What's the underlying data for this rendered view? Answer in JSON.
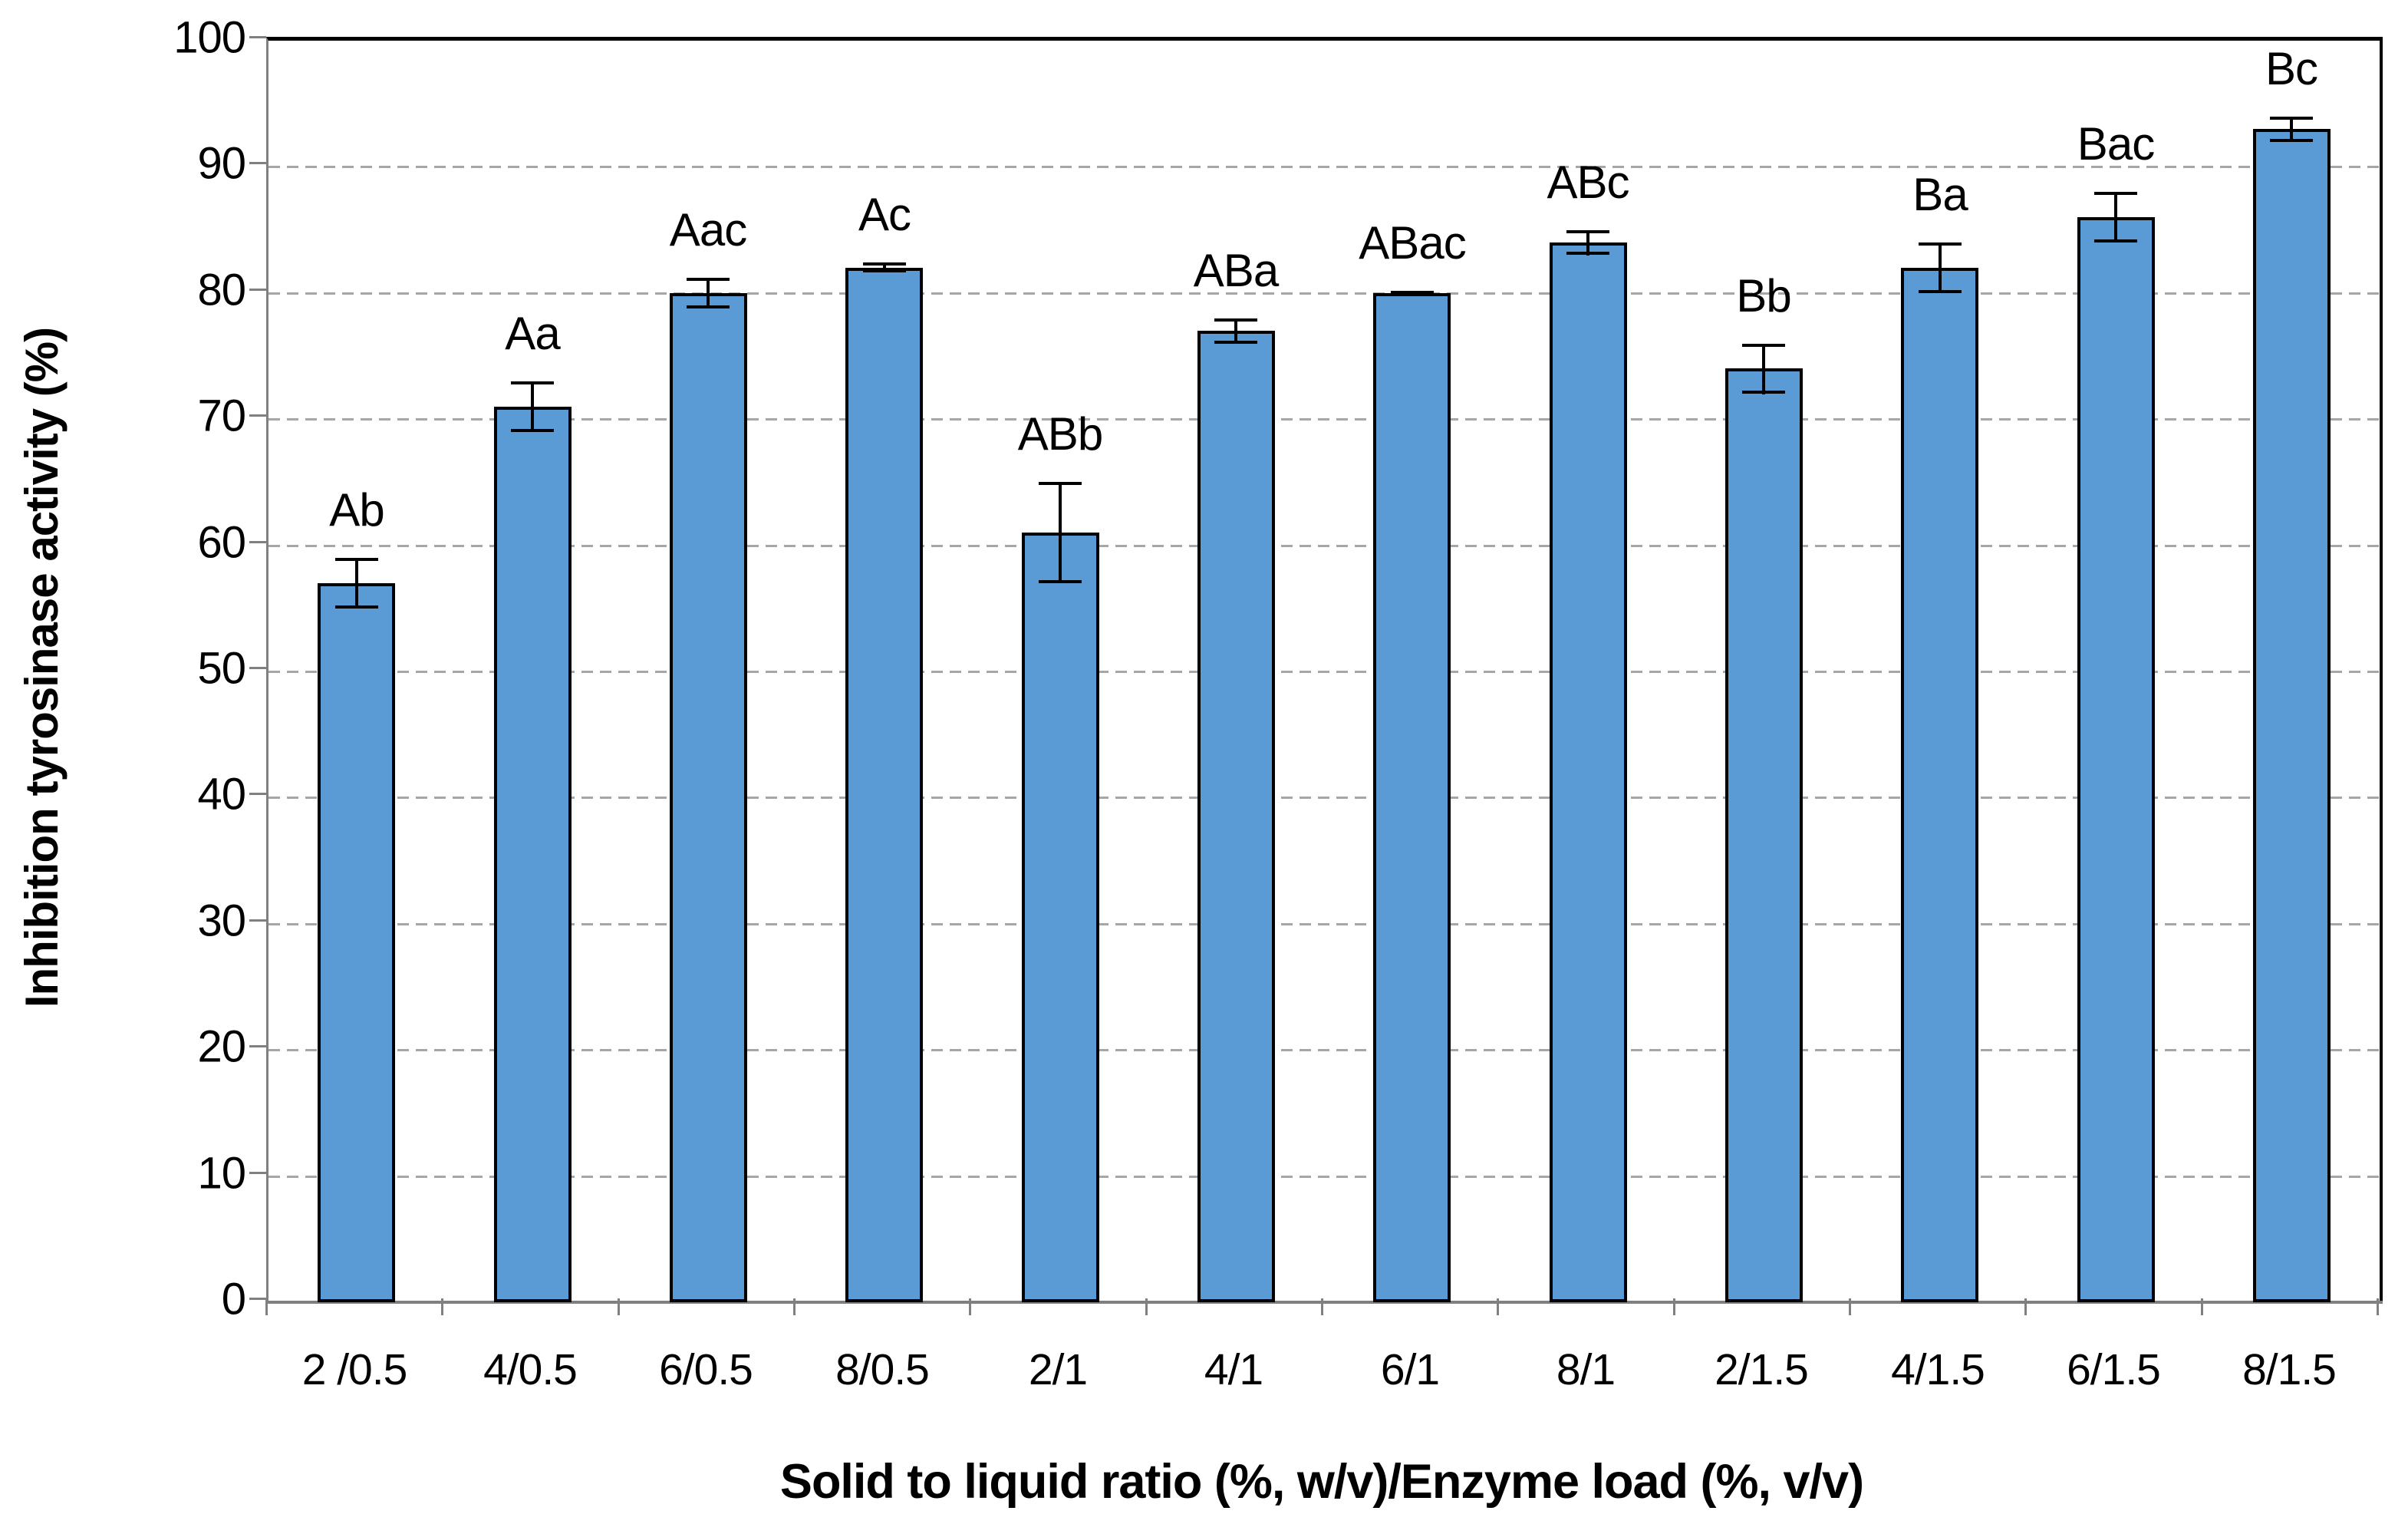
{
  "chart_data": {
    "type": "bar",
    "title": "",
    "xlabel": "Solid to liquid ratio (%, w/v)/Enzyme load (%, v/v)",
    "ylabel": "Inhibition tyrosinase activity (%)",
    "categories": [
      "2 /0.5",
      "4/0.5",
      "6/0.5",
      "8/0.5",
      "2/1",
      "4/1",
      "6/1",
      "8/1",
      "2/1.5",
      "4/1.5",
      "6/1.5",
      "8/1.5"
    ],
    "values": [
      57,
      71,
      80,
      82,
      61,
      77,
      80,
      84,
      74,
      82,
      86,
      93
    ],
    "error_bars": [
      2,
      2,
      1.2,
      0.4,
      4,
      1,
      0.2,
      1,
      2,
      2,
      2,
      1
    ],
    "bar_labels": [
      "Ab",
      "Aa",
      "Aac",
      "Ac",
      "ABb",
      "ABa",
      "ABac",
      "ABc",
      "Bb",
      "Ba",
      "Bac",
      "Bc"
    ],
    "yticks": [
      0,
      10,
      20,
      30,
      40,
      50,
      60,
      70,
      80,
      90,
      100
    ],
    "ylim": [
      0,
      100
    ],
    "grid": "horizontal-dashed",
    "legend": "none",
    "bar_color": "#5b9bd5",
    "bar_border_color": "#000000",
    "gridline_color": "#a6a6a6",
    "axis_color": "#808080"
  }
}
